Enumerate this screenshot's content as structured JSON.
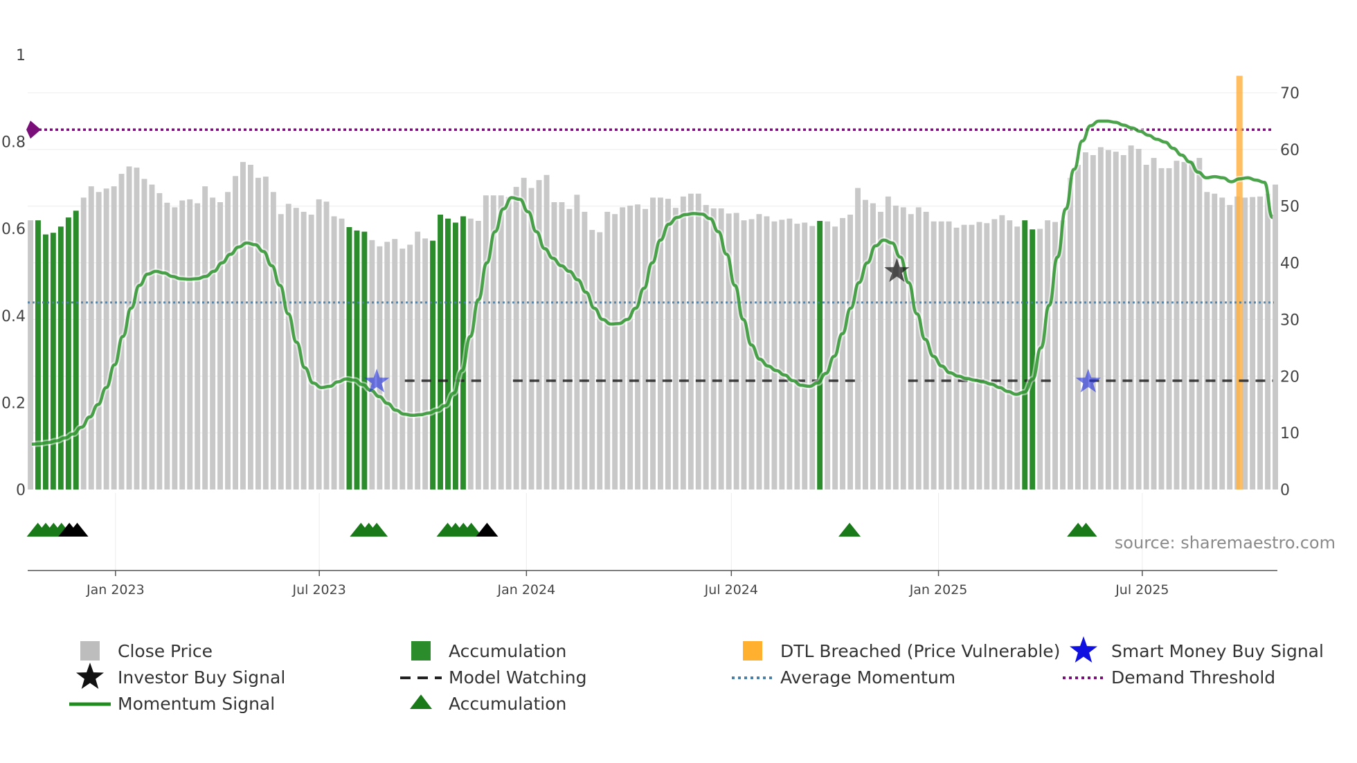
{
  "chart_data": {
    "type": "bar",
    "source_label": "source: sharemaestro.com",
    "y_left": {
      "ticks": [
        0,
        0.2,
        0.4,
        0.6,
        0.8,
        1
      ],
      "tick_labels": [
        "0",
        "0.2",
        "0.4",
        "0.6",
        "0.8",
        "1"
      ],
      "range": [
        0,
        1
      ]
    },
    "y_right": {
      "ticks": [
        0,
        10,
        20,
        30,
        40,
        50,
        60,
        70
      ],
      "tick_labels": [
        "0",
        "10",
        "20",
        "30",
        "40",
        "50",
        "60",
        "70"
      ],
      "range": [
        0,
        76.5
      ]
    },
    "x_axis": {
      "date_range": [
        "2022-10-15",
        "2025-10-29"
      ],
      "ticks": [
        {
          "date": "2023-01-01",
          "label": "Jan 2023"
        },
        {
          "date": "2023-07-01",
          "label": "Jul 2023"
        },
        {
          "date": "2024-01-01",
          "label": "Jan 2024"
        },
        {
          "date": "2024-07-01",
          "label": "Jul 2024"
        },
        {
          "date": "2025-01-01",
          "label": "Jan 2025"
        },
        {
          "date": "2025-07-01",
          "label": "Jul 2025"
        }
      ]
    },
    "close_price": {
      "name": "Close Price",
      "color": "#c8c8c8",
      "values": [
        47.5,
        47.5,
        45,
        45.3,
        46.4,
        48,
        49.2,
        51.5,
        53.5,
        52.5,
        53.1,
        53.5,
        55.7,
        57,
        56.8,
        54.8,
        53.8,
        52.3,
        50.6,
        49.8,
        51,
        51.2,
        50.5,
        53.5,
        51.5,
        50.7,
        52.5,
        55.3,
        57.8,
        57.3,
        55,
        55.2,
        52.5,
        48.6,
        50.4,
        49.7,
        49,
        48.5,
        51.2,
        50.8,
        48.2,
        47.8,
        46.3,
        45.7,
        45.5,
        44,
        42.9,
        43.7,
        44.2,
        42.5,
        43.2,
        45.5,
        44.3,
        43.9,
        48.5,
        47.8,
        47.1,
        48.2,
        47.8,
        47.4,
        51.9,
        51.9,
        51.9,
        51.6,
        53.4,
        55,
        53.2,
        54.6,
        55.5,
        50.7,
        50.7,
        49.5,
        52,
        49,
        45.8,
        45.4,
        49,
        48.6,
        49.8,
        50.1,
        50.3,
        49.5,
        51.5,
        51.5,
        51.3,
        49.7,
        51.7,
        52.2,
        52.2,
        50.2,
        49.6,
        49.6,
        48.7,
        48.8,
        47.5,
        47.7,
        48.6,
        48.2,
        47.3,
        47.6,
        47.8,
        46.9,
        47.1,
        46.5,
        47.4,
        47.3,
        46.4,
        47.9,
        48.5,
        53.2,
        51.1,
        50.5,
        49,
        51.7,
        50.1,
        49.8,
        48.6,
        49.8,
        49,
        47.3,
        47.3,
        47.3,
        46.2,
        46.7,
        46.7,
        47.2,
        47,
        47.7,
        48.4,
        47.5,
        46.4,
        47.5,
        45.9,
        46,
        47.5,
        47.2,
        47.5,
        55,
        57.3,
        59.5,
        59,
        60.4,
        59.9,
        59.6,
        59,
        60.7,
        60.1,
        57.3,
        58.5,
        56.7,
        56.7,
        58,
        57.8,
        58,
        58.5,
        52.5,
        52.2,
        51.5,
        50.2,
        51.7,
        51.5,
        51.6,
        51.7,
        52.2,
        53.8
      ]
    },
    "accumulation_bars": {
      "name": "Accumulation",
      "color": "#2a8c2a",
      "indices": [
        1,
        2,
        3,
        4,
        5,
        6,
        42,
        43,
        44,
        53,
        54,
        55,
        56,
        57,
        104,
        131,
        132
      ]
    },
    "dtl_breached": {
      "name": "DTL Breached (Price Vulnerable)",
      "color": "#ffb347",
      "date": "2025-09-25",
      "value": 73
    },
    "momentum_signal": {
      "name": "Momentum Signal",
      "color": "#1e8c1e",
      "values": [
        8,
        8.1,
        8.3,
        8.6,
        9.1,
        9.8,
        11,
        12.8,
        15,
        18,
        22,
        27,
        32,
        36,
        38,
        38.5,
        38.2,
        37.6,
        37.2,
        37.1,
        37.2,
        37.6,
        38.5,
        40,
        41.5,
        42.8,
        43.5,
        43.2,
        42,
        39.5,
        36,
        31,
        26,
        21.5,
        18.8,
        18,
        18.2,
        19,
        19.5,
        19.3,
        18.5,
        17.5,
        16.4,
        15.2,
        14,
        13.3,
        13.1,
        13.2,
        13.5,
        14,
        14.8,
        17,
        21,
        27,
        33.5,
        40,
        45.5,
        49.5,
        51.5,
        51.2,
        49,
        45.5,
        42.5,
        40.8,
        39.5,
        38.5,
        37,
        34.8,
        32,
        30,
        29.2,
        29.3,
        30,
        32,
        35.5,
        40,
        44,
        46.8,
        48,
        48.5,
        48.7,
        48.6,
        47.8,
        45.5,
        41.5,
        36,
        30,
        25.5,
        23,
        21.8,
        21,
        20.2,
        19.2,
        18.4,
        18.2,
        18.8,
        20.5,
        23.5,
        27.5,
        32,
        36.5,
        40,
        43,
        44,
        43.5,
        41,
        36.5,
        31,
        26.5,
        23.5,
        21.8,
        20.6,
        20,
        19.6,
        19.3,
        19,
        18.6,
        18,
        17.3,
        16.8,
        17.2,
        19.5,
        25,
        32.5,
        41,
        49.5,
        56.5,
        61.5,
        64.2,
        65,
        65,
        64.8,
        64.3,
        63.8,
        63.2,
        62.5,
        61.8,
        61.3,
        60.2,
        59,
        57.8,
        56,
        55,
        55.2,
        55,
        54.3,
        54.8,
        55,
        54.6,
        54.2,
        48
      ]
    },
    "model_watching": {
      "name": "Model Watching",
      "color": "#222222",
      "value": 19.2,
      "segments": [
        [
          "2023-09-15",
          "2023-11-25"
        ],
        [
          "2023-12-20",
          "2024-10-25"
        ],
        [
          "2024-12-05",
          "2025-04-15"
        ],
        [
          "2025-05-15",
          "2025-10-25"
        ]
      ]
    },
    "average_momentum": {
      "name": "Average Momentum",
      "color": "#4a7fa8",
      "value": 33
    },
    "demand_threshold": {
      "name": "Demand Threshold",
      "color": "#7a0f7a",
      "value": 63.5
    },
    "smart_money_buy": {
      "name": "Smart Money Buy Signal",
      "color": "#1f2ee0",
      "points": [
        {
          "date": "2023-08-21",
          "value": 19
        },
        {
          "date": "2025-05-14",
          "value": 19
        }
      ]
    },
    "investor_buy": {
      "name": "Investor Buy Signal",
      "color": "#111111",
      "points": [
        {
          "date": "2024-11-25",
          "value": 38.5
        }
      ]
    },
    "accumulation_markers": {
      "name": "Accumulation",
      "color": "#1a7a1a",
      "points": [
        "2022-10-24",
        "2022-10-31",
        "2022-11-07",
        "2022-11-14",
        "2023-08-07",
        "2023-08-14",
        "2023-08-21",
        "2023-10-23",
        "2023-10-30",
        "2023-11-06",
        "2023-11-13",
        "2024-10-14",
        "2025-05-05",
        "2025-05-12"
      ]
    },
    "investor_markers": {
      "name": "Investor Buy Signal",
      "color": "#000000",
      "points": [
        "2022-11-21",
        "2022-11-28",
        "2023-11-27"
      ]
    },
    "legend": [
      {
        "label": "Close Price",
        "symbol": "gray-square"
      },
      {
        "label": "Investor Buy Signal",
        "symbol": "black-star"
      },
      {
        "label": "Momentum Signal",
        "symbol": "green-line"
      },
      {
        "label": "Accumulation",
        "symbol": "green-square"
      },
      {
        "label": "Model Watching",
        "symbol": "black-dash"
      },
      {
        "label": "Accumulation",
        "symbol": "green-triangle"
      },
      {
        "label": "DTL Breached (Price Vulnerable)",
        "symbol": "orange-square"
      },
      {
        "label": "Average Momentum",
        "symbol": "blue-dot"
      },
      {
        "label": "Smart Money Buy Signal",
        "symbol": "blue-star"
      },
      {
        "label": "Demand Threshold",
        "symbol": "purple-dot"
      }
    ]
  }
}
